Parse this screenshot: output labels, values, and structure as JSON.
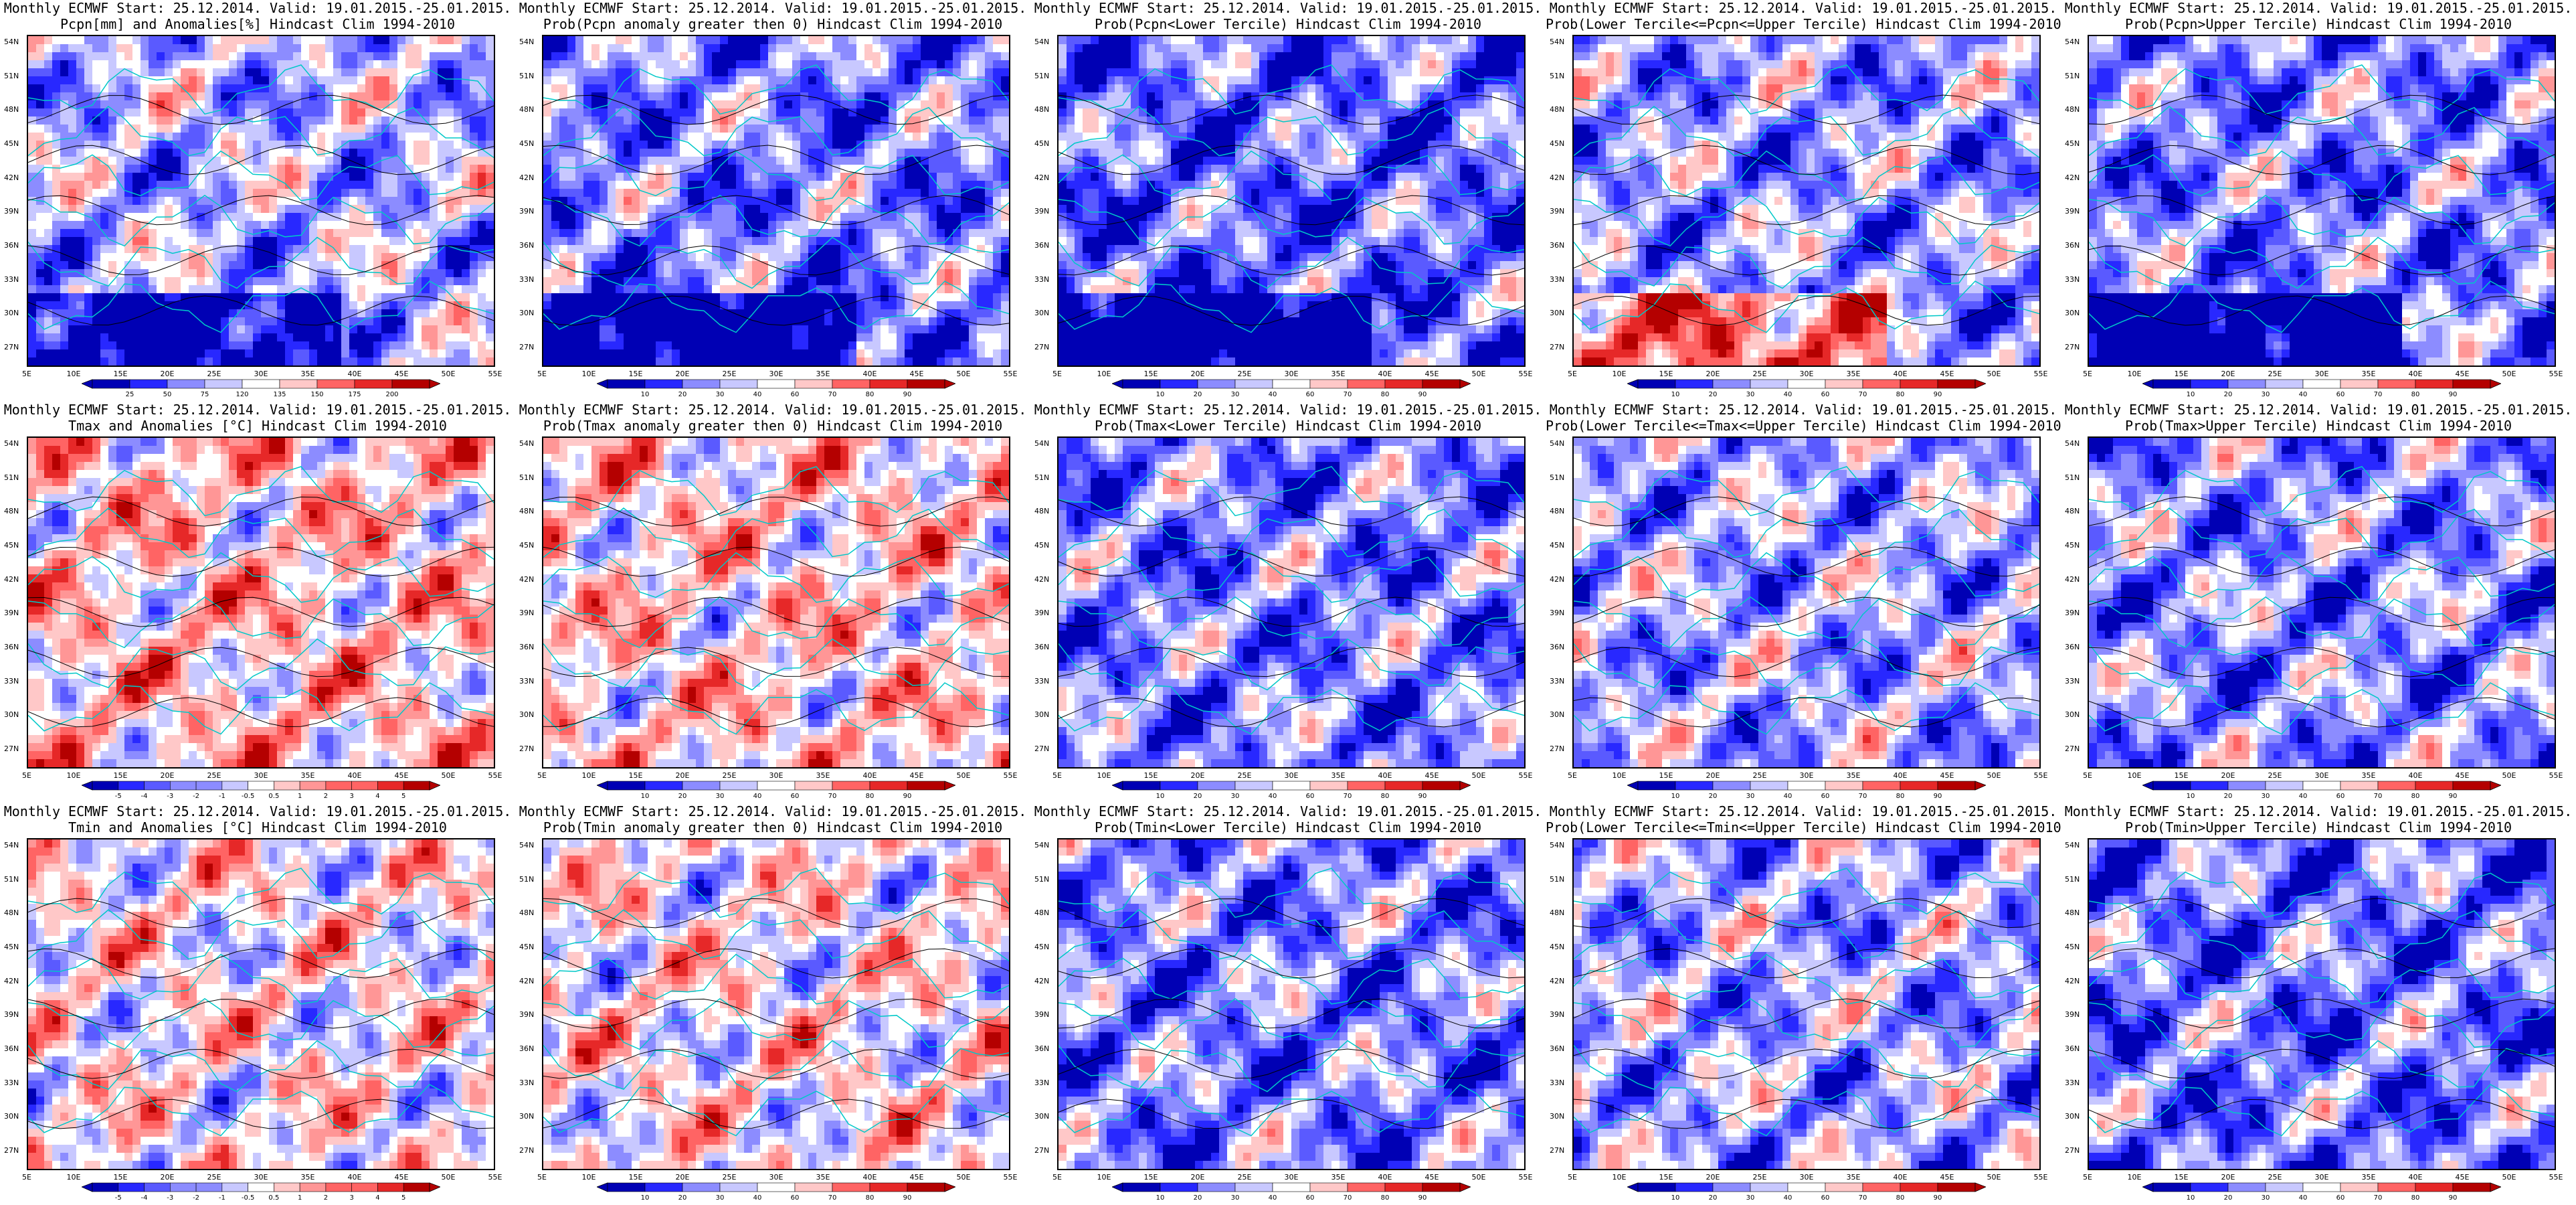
{
  "chart_data": {
    "type": "heatmap",
    "layout": {
      "rows": 3,
      "cols": 5
    },
    "common": {
      "y_ticks": [
        "54N",
        "51N",
        "48N",
        "45N",
        "42N",
        "39N",
        "36N",
        "33N",
        "30N",
        "27N"
      ],
      "x_ticks": [
        "5E",
        "10E",
        "15E",
        "20E",
        "25E",
        "30E",
        "35E",
        "40E",
        "45E",
        "50E",
        "55E"
      ],
      "anom_levels_precip": [
        "25",
        "50",
        "75",
        "120",
        "135",
        "150",
        "175",
        "200"
      ],
      "anom_levels_temp": [
        "-5",
        "-4",
        "-3",
        "-2",
        "-1",
        "-0.5",
        "0.5",
        "1",
        "2",
        "3",
        "4",
        "5"
      ],
      "prob_levels": [
        "10",
        "20",
        "30",
        "40",
        "60",
        "70",
        "80",
        "90"
      ],
      "colors": {
        "deep_blue": "#0000b4",
        "mid_blue": "#5a5aff",
        "light_blue": "#c8c8ff",
        "white": "#ffffff",
        "light_red": "#ffc8c8",
        "mid_red": "#ff6464",
        "deep_red": "#b40000",
        "coast": "#00c8c8",
        "contour": "#000000"
      }
    },
    "panels": [
      {
        "title1": "Monthly ECMWF Start: 25.12.2014. Valid: 19.01.2015.-25.01.2015.",
        "title2": "Pcpn[mm] and Anomalies[%] Hindcast Clim 1994-2010",
        "variable": "Pcpn",
        "field": "anomaly",
        "scale": "precip",
        "bias": -0.25
      },
      {
        "title1": "Monthly ECMWF Start: 25.12.2014. Valid: 19.01.2015.-25.01.2015.",
        "title2": "Prob(Pcpn anomaly greater then 0) Hindcast Clim 1994-2010",
        "variable": "Pcpn",
        "field": "prob_gt0",
        "scale": "prob",
        "bias": -0.45
      },
      {
        "title1": "Monthly ECMWF Start: 25.12.2014. Valid: 19.01.2015.-25.01.2015.",
        "title2": "Prob(Pcpn<Lower Tercile) Hindcast Clim 1994-2010",
        "variable": "Pcpn",
        "field": "prob_lower",
        "scale": "prob",
        "bias": -0.55
      },
      {
        "title1": "Monthly ECMWF Start: 25.12.2014. Valid: 19.01.2015.-25.01.2015.",
        "title2": "Prob(Lower Tercile<=Pcpn<=Upper Tercile) Hindcast Clim 1994-2010",
        "variable": "Pcpn",
        "field": "prob_middle",
        "scale": "prob",
        "bias": -0.35
      },
      {
        "title1": "Monthly ECMWF Start: 25.12.2014. Valid: 19.01.2015.-25.01.2015.",
        "title2": "Prob(Pcpn>Upper Tercile) Hindcast Clim 1994-2010",
        "variable": "Pcpn",
        "field": "prob_upper",
        "scale": "prob",
        "bias": -0.45
      },
      {
        "title1": "Monthly ECMWF Start: 25.12.2014. Valid: 19.01.2015.-25.01.2015.",
        "title2": "Tmax and Anomalies [°C] Hindcast Clim 1994-2010",
        "variable": "Tmax",
        "field": "anomaly",
        "scale": "temp",
        "bias": 0.2
      },
      {
        "title1": "Monthly ECMWF Start: 25.12.2014. Valid: 19.01.2015.-25.01.2015.",
        "title2": "Prob(Tmax anomaly greater then 0) Hindcast Clim 1994-2010",
        "variable": "Tmax",
        "field": "prob_gt0",
        "scale": "prob",
        "bias": 0.15
      },
      {
        "title1": "Monthly ECMWF Start: 25.12.2014. Valid: 19.01.2015.-25.01.2015.",
        "title2": "Prob(Tmax<Lower Tercile) Hindcast Clim 1994-2010",
        "variable": "Tmax",
        "field": "prob_lower",
        "scale": "prob",
        "bias": -0.45
      },
      {
        "title1": "Monthly ECMWF Start: 25.12.2014. Valid: 19.01.2015.-25.01.2015.",
        "title2": "Prob(Lower Tercile<=Tmax<=Upper Tercile) Hindcast Clim 1994-2010",
        "variable": "Tmax",
        "field": "prob_middle",
        "scale": "prob",
        "bias": -0.3
      },
      {
        "title1": "Monthly ECMWF Start: 25.12.2014. Valid: 19.01.2015.-25.01.2015.",
        "title2": "Prob(Tmax>Upper Tercile) Hindcast Clim 1994-2010",
        "variable": "Tmax",
        "field": "prob_upper",
        "scale": "prob",
        "bias": -0.4
      },
      {
        "title1": "Monthly ECMWF Start: 25.12.2014. Valid: 19.01.2015.-25.01.2015.",
        "title2": "Tmin and Anomalies [°C] Hindcast Clim 1994-2010",
        "variable": "Tmin",
        "field": "anomaly",
        "scale": "temp",
        "bias": 0.05
      },
      {
        "title1": "Monthly ECMWF Start: 25.12.2014. Valid: 19.01.2015.-25.01.2015.",
        "title2": "Prob(Tmin anomaly greater then 0) Hindcast Clim 1994-2010",
        "variable": "Tmin",
        "field": "prob_gt0",
        "scale": "prob",
        "bias": 0.05
      },
      {
        "title1": "Monthly ECMWF Start: 25.12.2014. Valid: 19.01.2015.-25.01.2015.",
        "title2": "Prob(Tmin<Lower Tercile) Hindcast Clim 1994-2010",
        "variable": "Tmin",
        "field": "prob_lower",
        "scale": "prob",
        "bias": -0.45
      },
      {
        "title1": "Monthly ECMWF Start: 25.12.2014. Valid: 19.01.2015.-25.01.2015.",
        "title2": "Prob(Lower Tercile<=Tmin<=Upper Tercile) Hindcast Clim 1994-2010",
        "variable": "Tmin",
        "field": "prob_middle",
        "scale": "prob",
        "bias": -0.3
      },
      {
        "title1": "Monthly ECMWF Start: 25.12.2014. Valid: 19.01.2015.-25.01.2015.",
        "title2": "Prob(Tmin>Upper Tercile) Hindcast Clim 1994-2010",
        "variable": "Tmin",
        "field": "prob_upper",
        "scale": "prob",
        "bias": -0.5
      }
    ]
  }
}
